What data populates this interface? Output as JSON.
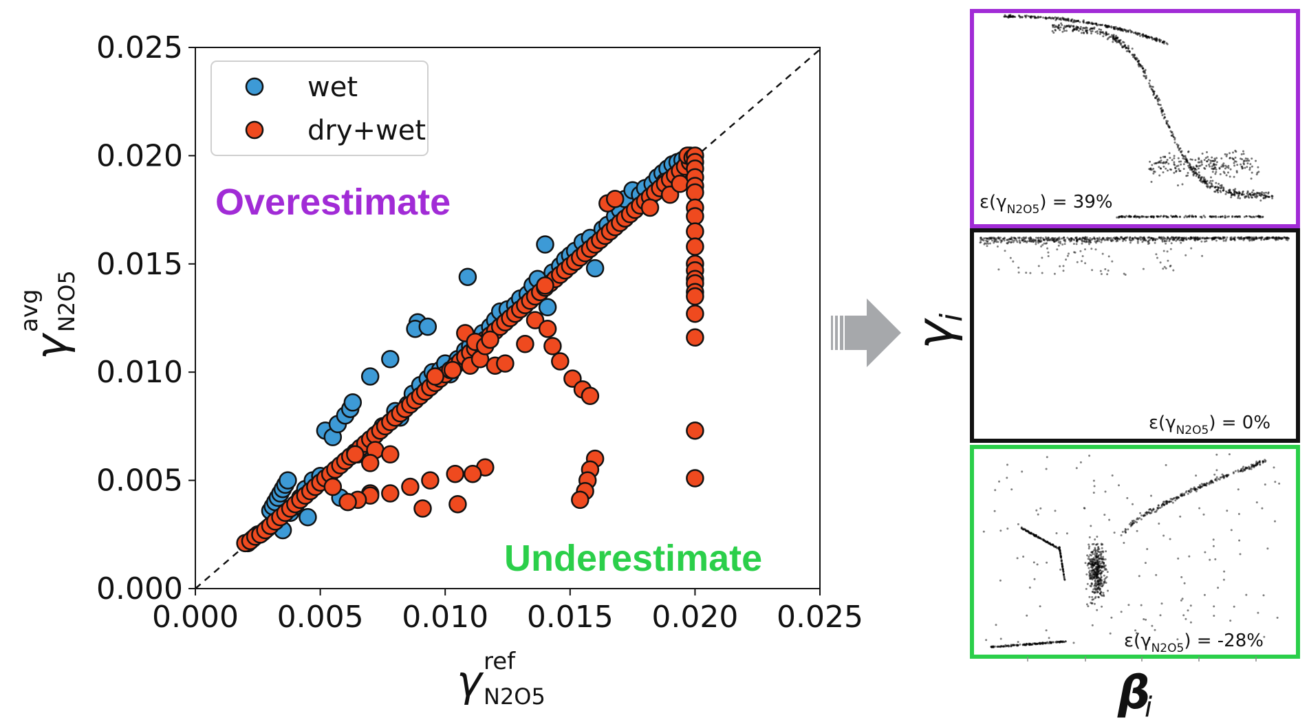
{
  "chart_data": [
    {
      "type": "scatter",
      "xlim": [
        0,
        0.025
      ],
      "ylim": [
        0,
        0.025
      ],
      "xticks": [
        "0.000",
        "0.005",
        "0.010",
        "0.015",
        "0.020",
        "0.025"
      ],
      "yticks": [
        "0.000",
        "0.005",
        "0.010",
        "0.015",
        "0.020",
        "0.025"
      ],
      "xlabel": "γ",
      "xlabel_sup": "ref",
      "xlabel_sub": "N2O5",
      "ylabel": "γ",
      "ylabel_sup": "avg",
      "ylabel_sub": "N2O5",
      "legend_position": "top-left",
      "reference_line": "y = x (dashed)",
      "grid": false,
      "annotations": {
        "over": {
          "text": "Overestimate",
          "color": "#a12bd6"
        },
        "under": {
          "text": "Underestimate",
          "color": "#2bcf4a"
        }
      },
      "series": [
        {
          "name": "wet",
          "color": "#3d9ad6",
          "points": [
            [
              0.0021,
              0.0021
            ],
            [
              0.0023,
              0.0023
            ],
            [
              0.0025,
              0.0025
            ],
            [
              0.0027,
              0.0026
            ],
            [
              0.0029,
              0.0028
            ],
            [
              0.003,
              0.0036
            ],
            [
              0.0031,
              0.0038
            ],
            [
              0.0032,
              0.004
            ],
            [
              0.0033,
              0.0042
            ],
            [
              0.0034,
              0.0044
            ],
            [
              0.0035,
              0.0046
            ],
            [
              0.0036,
              0.0048
            ],
            [
              0.0037,
              0.005
            ],
            [
              0.0033,
              0.003
            ],
            [
              0.0035,
              0.0027
            ],
            [
              0.0038,
              0.0035
            ],
            [
              0.004,
              0.0038
            ],
            [
              0.0042,
              0.0042
            ],
            [
              0.0044,
              0.0046
            ],
            [
              0.0045,
              0.0033
            ],
            [
              0.0047,
              0.005
            ],
            [
              0.005,
              0.0052
            ],
            [
              0.0052,
              0.0073
            ],
            [
              0.0055,
              0.007
            ],
            [
              0.0057,
              0.0076
            ],
            [
              0.006,
              0.008
            ],
            [
              0.0062,
              0.0083
            ],
            [
              0.0063,
              0.0086
            ],
            [
              0.0058,
              0.0042
            ],
            [
              0.0065,
              0.0062
            ],
            [
              0.0068,
              0.0064
            ],
            [
              0.007,
              0.0068
            ],
            [
              0.007,
              0.0098
            ],
            [
              0.0072,
              0.0071
            ],
            [
              0.0075,
              0.0075
            ],
            [
              0.0078,
              0.0106
            ],
            [
              0.008,
              0.0082
            ],
            [
              0.0082,
              0.0079
            ],
            [
              0.0085,
              0.0085
            ],
            [
              0.0087,
              0.009
            ],
            [
              0.0089,
              0.0123
            ],
            [
              0.0088,
              0.012
            ],
            [
              0.009,
              0.0094
            ],
            [
              0.0093,
              0.0097
            ],
            [
              0.0093,
              0.0121
            ],
            [
              0.0095,
              0.01
            ],
            [
              0.0098,
              0.0101
            ],
            [
              0.01,
              0.0104
            ],
            [
              0.0102,
              0.0099
            ],
            [
              0.0105,
              0.0106
            ],
            [
              0.0108,
              0.011
            ],
            [
              0.0109,
              0.0144
            ],
            [
              0.011,
              0.0112
            ],
            [
              0.0112,
              0.0115
            ],
            [
              0.0115,
              0.0118
            ],
            [
              0.0118,
              0.0121
            ],
            [
              0.012,
              0.0124
            ],
            [
              0.0122,
              0.0128
            ],
            [
              0.0125,
              0.0129
            ],
            [
              0.0128,
              0.0131
            ],
            [
              0.013,
              0.0134
            ],
            [
              0.0133,
              0.0136
            ],
            [
              0.0135,
              0.014
            ],
            [
              0.0137,
              0.0143
            ],
            [
              0.014,
              0.0159
            ],
            [
              0.0141,
              0.013
            ],
            [
              0.0143,
              0.0146
            ],
            [
              0.0146,
              0.0149
            ],
            [
              0.0148,
              0.0152
            ],
            [
              0.015,
              0.0154
            ],
            [
              0.0152,
              0.0156
            ],
            [
              0.0155,
              0.016
            ],
            [
              0.0158,
              0.0162
            ],
            [
              0.016,
              0.0148
            ],
            [
              0.0163,
              0.0166
            ],
            [
              0.0165,
              0.0168
            ],
            [
              0.0168,
              0.0172
            ],
            [
              0.017,
              0.0175
            ],
            [
              0.0172,
              0.018
            ],
            [
              0.0175,
              0.0184
            ],
            [
              0.0178,
              0.0182
            ],
            [
              0.018,
              0.0185
            ],
            [
              0.0183,
              0.0187
            ],
            [
              0.0185,
              0.019
            ],
            [
              0.0187,
              0.0192
            ],
            [
              0.0189,
              0.0194
            ],
            [
              0.0191,
              0.0196
            ],
            [
              0.0193,
              0.0197
            ],
            [
              0.0195,
              0.0198
            ],
            [
              0.0196,
              0.0192
            ],
            [
              0.0197,
              0.0199
            ],
            [
              0.0198,
              0.02
            ],
            [
              0.0188,
              0.0188
            ],
            [
              0.019,
              0.0185
            ]
          ]
        },
        {
          "name": "dry+wet",
          "color": "#ef4a1f",
          "points": [
            [
              0.002,
              0.0021
            ],
            [
              0.0022,
              0.0022
            ],
            [
              0.0024,
              0.0024
            ],
            [
              0.0026,
              0.0025
            ],
            [
              0.0028,
              0.0027
            ],
            [
              0.003,
              0.0029
            ],
            [
              0.0032,
              0.0031
            ],
            [
              0.0034,
              0.0033
            ],
            [
              0.0036,
              0.0035
            ],
            [
              0.0038,
              0.0037
            ],
            [
              0.004,
              0.0039
            ],
            [
              0.0042,
              0.0041
            ],
            [
              0.0044,
              0.0043
            ],
            [
              0.0046,
              0.0045
            ],
            [
              0.0048,
              0.0047
            ],
            [
              0.005,
              0.0049
            ],
            [
              0.0052,
              0.0051
            ],
            [
              0.0054,
              0.0053
            ],
            [
              0.0056,
              0.0055
            ],
            [
              0.0058,
              0.0057
            ],
            [
              0.006,
              0.0059
            ],
            [
              0.0062,
              0.0061
            ],
            [
              0.0064,
              0.0063
            ],
            [
              0.0066,
              0.0065
            ],
            [
              0.0068,
              0.0067
            ],
            [
              0.007,
              0.0069
            ],
            [
              0.0072,
              0.0071
            ],
            [
              0.0074,
              0.0073
            ],
            [
              0.0076,
              0.0075
            ],
            [
              0.0078,
              0.0077
            ],
            [
              0.008,
              0.0079
            ],
            [
              0.0082,
              0.0081
            ],
            [
              0.0084,
              0.0083
            ],
            [
              0.0086,
              0.0085
            ],
            [
              0.0088,
              0.0087
            ],
            [
              0.009,
              0.0089
            ],
            [
              0.0092,
              0.0091
            ],
            [
              0.0094,
              0.0093
            ],
            [
              0.0096,
              0.0095
            ],
            [
              0.0098,
              0.0097
            ],
            [
              0.01,
              0.0099
            ],
            [
              0.0102,
              0.0101
            ],
            [
              0.0104,
              0.0103
            ],
            [
              0.0106,
              0.0105
            ],
            [
              0.0108,
              0.0107
            ],
            [
              0.011,
              0.0109
            ],
            [
              0.0112,
              0.0111
            ],
            [
              0.0114,
              0.0113
            ],
            [
              0.0116,
              0.0115
            ],
            [
              0.0118,
              0.0117
            ],
            [
              0.012,
              0.0119
            ],
            [
              0.0122,
              0.0121
            ],
            [
              0.0124,
              0.0123
            ],
            [
              0.0126,
              0.0125
            ],
            [
              0.0128,
              0.0127
            ],
            [
              0.013,
              0.0129
            ],
            [
              0.0132,
              0.0131
            ],
            [
              0.0134,
              0.0133
            ],
            [
              0.0136,
              0.0135
            ],
            [
              0.0138,
              0.0137
            ],
            [
              0.014,
              0.0139
            ],
            [
              0.0142,
              0.0141
            ],
            [
              0.0144,
              0.0143
            ],
            [
              0.0146,
              0.0145
            ],
            [
              0.0148,
              0.0147
            ],
            [
              0.015,
              0.0149
            ],
            [
              0.0152,
              0.0151
            ],
            [
              0.0154,
              0.0153
            ],
            [
              0.0156,
              0.0155
            ],
            [
              0.0158,
              0.0157
            ],
            [
              0.016,
              0.0159
            ],
            [
              0.0162,
              0.0161
            ],
            [
              0.0164,
              0.0163
            ],
            [
              0.0166,
              0.0165
            ],
            [
              0.0168,
              0.0167
            ],
            [
              0.017,
              0.0169
            ],
            [
              0.0172,
              0.0171
            ],
            [
              0.0174,
              0.0173
            ],
            [
              0.0176,
              0.0175
            ],
            [
              0.0178,
              0.0177
            ],
            [
              0.018,
              0.0179
            ],
            [
              0.0182,
              0.0181
            ],
            [
              0.0184,
              0.0183
            ],
            [
              0.0186,
              0.0185
            ],
            [
              0.0188,
              0.0187
            ],
            [
              0.019,
              0.0189
            ],
            [
              0.0192,
              0.0191
            ],
            [
              0.0194,
              0.0193
            ],
            [
              0.0196,
              0.0195
            ],
            [
              0.0198,
              0.0197
            ],
            [
              0.0108,
              0.0118
            ],
            [
              0.0112,
              0.0114
            ],
            [
              0.0064,
              0.0062
            ],
            [
              0.0072,
              0.0064
            ],
            [
              0.007,
              0.0044
            ],
            [
              0.0078,
              0.0062
            ],
            [
              0.0096,
              0.0098
            ],
            [
              0.0103,
              0.0101
            ],
            [
              0.011,
              0.0103
            ],
            [
              0.0114,
              0.0106
            ],
            [
              0.0116,
              0.0112
            ],
            [
              0.0118,
              0.0115
            ],
            [
              0.012,
              0.0103
            ],
            [
              0.0124,
              0.0104
            ],
            [
              0.0132,
              0.0113
            ],
            [
              0.0136,
              0.0124
            ],
            [
              0.014,
              0.014
            ],
            [
              0.0165,
              0.0178
            ],
            [
              0.0168,
              0.018
            ],
            [
              0.0182,
              0.0176
            ],
            [
              0.019,
              0.0182
            ],
            [
              0.0194,
              0.0187
            ],
            [
              0.0197,
              0.02
            ],
            [
              0.0199,
              0.0199
            ],
            [
              0.02,
              0.02
            ],
            [
              0.02,
              0.0197
            ],
            [
              0.02,
              0.0194
            ],
            [
              0.02,
              0.019
            ],
            [
              0.02,
              0.0186
            ],
            [
              0.02,
              0.0183
            ],
            [
              0.02,
              0.0176
            ],
            [
              0.02,
              0.0172
            ],
            [
              0.02,
              0.0165
            ],
            [
              0.02,
              0.0158
            ],
            [
              0.02,
              0.015
            ],
            [
              0.02,
              0.0147
            ],
            [
              0.02,
              0.0143
            ],
            [
              0.02,
              0.0141
            ],
            [
              0.02,
              0.0137
            ],
            [
              0.02,
              0.0135
            ],
            [
              0.02,
              0.0127
            ],
            [
              0.02,
              0.0116
            ],
            [
              0.02,
              0.0073
            ],
            [
              0.02,
              0.0051
            ],
            [
              0.0141,
              0.012
            ],
            [
              0.0143,
              0.0112
            ],
            [
              0.0146,
              0.0105
            ],
            [
              0.0151,
              0.0097
            ],
            [
              0.0155,
              0.0092
            ],
            [
              0.0158,
              0.0089
            ],
            [
              0.016,
              0.006
            ],
            [
              0.0158,
              0.0055
            ],
            [
              0.0157,
              0.005
            ],
            [
              0.0156,
              0.0045
            ],
            [
              0.0154,
              0.0041
            ],
            [
              0.0116,
              0.0056
            ],
            [
              0.0111,
              0.0053
            ],
            [
              0.0105,
              0.0039
            ],
            [
              0.0104,
              0.0053
            ],
            [
              0.0094,
              0.005
            ],
            [
              0.0086,
              0.0047
            ],
            [
              0.0091,
              0.0037
            ],
            [
              0.0078,
              0.0044
            ],
            [
              0.007,
              0.0043
            ],
            [
              0.0065,
              0.0041
            ],
            [
              0.0061,
              0.004
            ],
            [
              0.007,
              0.0058
            ],
            [
              0.0055,
              0.0047
            ]
          ]
        }
      ]
    }
  ],
  "arrow": {
    "color": "#a6a8ab",
    "label": "γ",
    "label_sub": "i"
  },
  "panels": [
    {
      "border_color": "#a12bd6",
      "eps_prefix": "ε(γ",
      "eps_sub": "N2O5",
      "eps_suffix": ") = 39%"
    },
    {
      "border_color": "#111111",
      "eps_prefix": "ε(γ",
      "eps_sub": "N2O5",
      "eps_suffix": ") = 0%"
    },
    {
      "border_color": "#2bcf4a",
      "eps_prefix": "ε(γ",
      "eps_sub": "N2O5",
      "eps_suffix": ") = -28%"
    }
  ],
  "panel_xlabel": "β",
  "panel_xlabel_sub": "i"
}
